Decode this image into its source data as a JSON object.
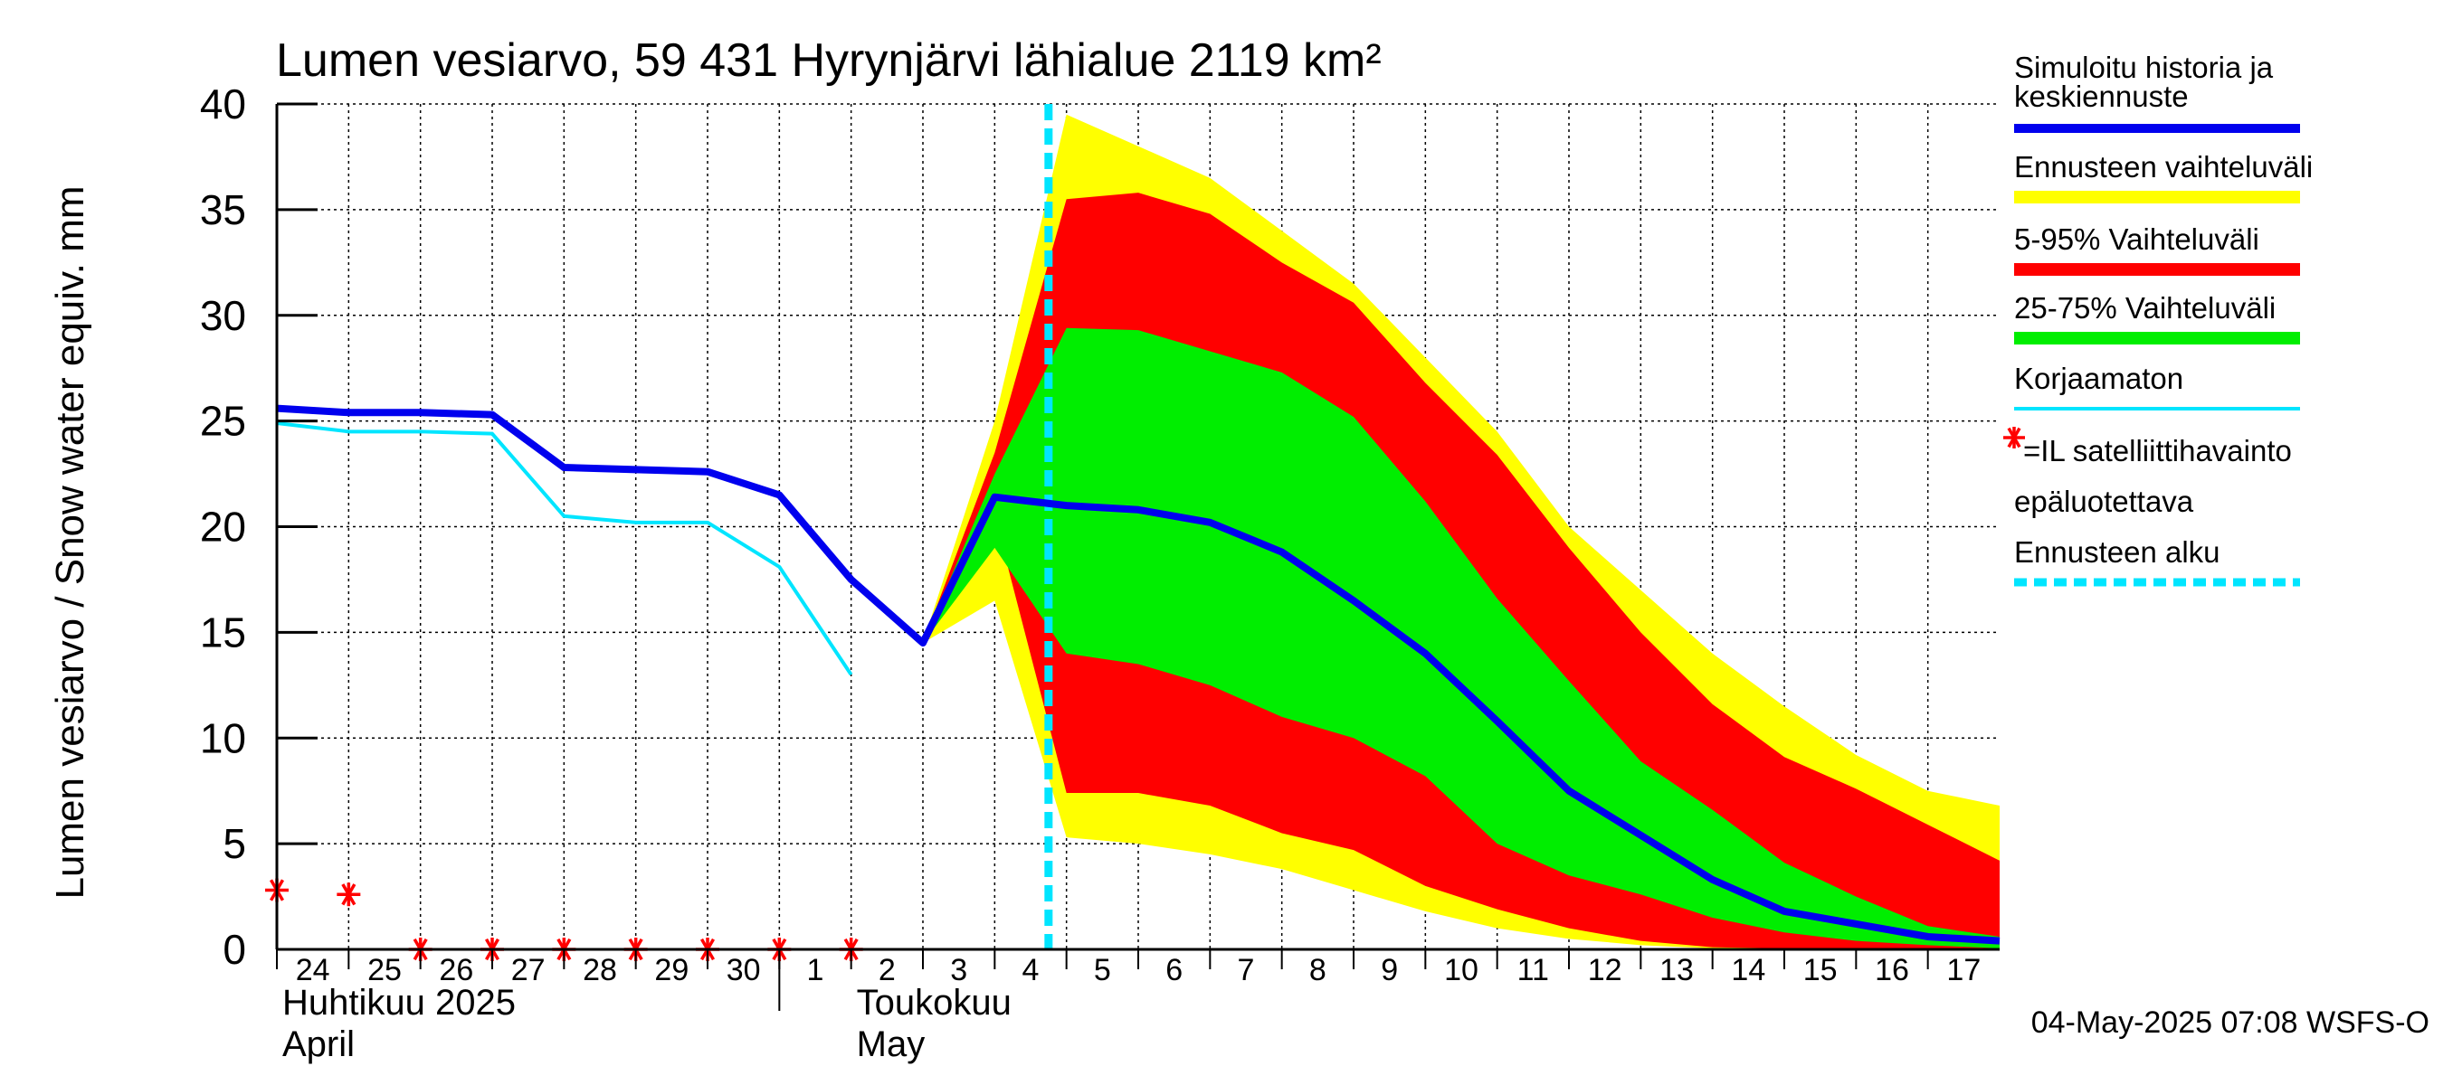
{
  "chart_data": {
    "type": "area",
    "title": "Lumen vesiarvo, 59 431 Hyrynjärvi lähialue 2119 km²",
    "ylabel": "Lumen vesiarvo / Snow water equiv.    mm",
    "ylim": [
      0,
      40
    ],
    "yticks": [
      0,
      5,
      10,
      15,
      20,
      25,
      30,
      35,
      40
    ],
    "grid": true,
    "legend_position": "right",
    "x_tick_labels": [
      "24",
      "25",
      "26",
      "27",
      "28",
      "29",
      "30",
      "1",
      "2",
      "3",
      "4",
      "5",
      "6",
      "7",
      "8",
      "9",
      "10",
      "11",
      "12",
      "13",
      "14",
      "15",
      "16",
      "17"
    ],
    "x_month_labels": [
      {
        "text": "Huhtikuu  2025",
        "line2": "April"
      },
      {
        "text": "Toukokuu",
        "line2": "May"
      }
    ],
    "forecast_start_day": 10.75,
    "timestamp": "04-May-2025 07:08 WSFS-O",
    "colors": {
      "simulated": "#0000ee",
      "full_range": "#ffff00",
      "p5_95": "#ff0000",
      "p25_75": "#00ee00",
      "uncorrected": "#00e5ff",
      "forecast_start": "#00e5ff",
      "observation": "#ff0000"
    },
    "series": {
      "simulated_mean": {
        "x": [
          0,
          1,
          2,
          3,
          4,
          5,
          6,
          7,
          8,
          9,
          10,
          11,
          12,
          13,
          14,
          15,
          16,
          17,
          18,
          19,
          20,
          21,
          22,
          23,
          24
        ],
        "y": [
          25.6,
          25.4,
          25.4,
          25.3,
          22.8,
          22.7,
          22.6,
          21.5,
          17.5,
          14.5,
          21.4,
          21.0,
          20.8,
          20.2,
          18.8,
          16.5,
          14.0,
          10.8,
          7.5,
          5.4,
          3.3,
          1.8,
          1.2,
          0.6,
          0.4
        ]
      },
      "uncorrected": {
        "x": [
          0,
          1,
          2,
          3,
          4,
          5,
          6,
          7,
          8
        ],
        "y": [
          24.9,
          24.5,
          24.5,
          24.4,
          20.5,
          20.2,
          20.2,
          18.1,
          13.0
        ]
      },
      "full_range": {
        "x": [
          9,
          10,
          11,
          12,
          13,
          14,
          15,
          16,
          17,
          18,
          19,
          20,
          21,
          22,
          23,
          24
        ],
        "upper": [
          14.5,
          25.0,
          39.5,
          38.0,
          36.5,
          34.0,
          31.5,
          28.0,
          24.5,
          20.0,
          17.0,
          14.0,
          11.5,
          9.2,
          7.5,
          6.8
        ],
        "lower": [
          14.5,
          16.5,
          5.3,
          5.0,
          4.5,
          3.8,
          2.8,
          1.8,
          1.0,
          0.5,
          0.2,
          0.05,
          0.0,
          0.0,
          0.0,
          0.0
        ]
      },
      "p5_95": {
        "x": [
          9,
          10,
          11,
          12,
          13,
          14,
          15,
          16,
          17,
          18,
          19,
          20,
          21,
          22,
          23,
          24
        ],
        "upper": [
          14.5,
          23.5,
          35.5,
          35.8,
          34.8,
          32.5,
          30.6,
          26.8,
          23.4,
          19.0,
          15.0,
          11.6,
          9.1,
          7.6,
          5.9,
          4.2
        ],
        "lower": [
          14.5,
          20.5,
          7.4,
          7.4,
          6.8,
          5.5,
          4.7,
          3.0,
          1.9,
          1.0,
          0.4,
          0.1,
          0.05,
          0.0,
          0.0,
          0.0
        ]
      },
      "p25_75": {
        "x": [
          9,
          10,
          11,
          12,
          13,
          14,
          15,
          16,
          17,
          18,
          19,
          20,
          21,
          22,
          23,
          24
        ],
        "upper": [
          14.5,
          22.5,
          29.4,
          29.3,
          28.3,
          27.3,
          25.2,
          21.2,
          16.6,
          12.7,
          8.9,
          6.6,
          4.1,
          2.5,
          1.1,
          0.6
        ],
        "lower": [
          14.5,
          19.0,
          14.0,
          13.5,
          12.5,
          11.0,
          10.0,
          8.2,
          5.0,
          3.5,
          2.6,
          1.5,
          0.8,
          0.4,
          0.2,
          0.05
        ]
      },
      "observations": {
        "x": [
          0,
          1,
          2,
          3,
          4,
          5,
          6,
          7,
          8
        ],
        "y": [
          2.8,
          2.6,
          0,
          0,
          0,
          0,
          0,
          0,
          0
        ]
      }
    },
    "legend": [
      {
        "label": "Simuloitu historia ja",
        "label2": "keskiennuste",
        "key": "simulated",
        "style": "line"
      },
      {
        "label": "Ennusteen vaihteluväli",
        "key": "full_range",
        "style": "band"
      },
      {
        "label": "5-95% Vaihteluväli",
        "key": "p5_95",
        "style": "band"
      },
      {
        "label": "25-75% Vaihteluväli",
        "key": "p25_75",
        "style": "band"
      },
      {
        "label": "Korjaamaton",
        "key": "uncorrected",
        "style": "thin"
      },
      {
        "label": "=IL satelliittihavainto",
        "label2": "epäluotettava",
        "key": "observation",
        "style": "star"
      },
      {
        "label": "Ennusteen alku",
        "key": "forecast_start",
        "style": "dashed"
      }
    ]
  }
}
